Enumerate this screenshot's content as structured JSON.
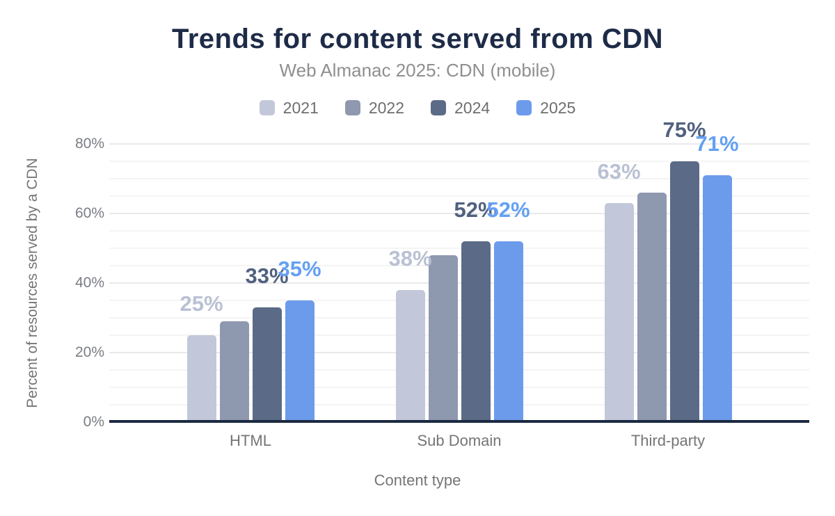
{
  "chart_data": {
    "type": "bar",
    "title": "Trends for content served from CDN",
    "subtitle": "Web Almanac 2025: CDN (mobile)",
    "xlabel": "Content type",
    "ylabel": "Percent of resources served by a CDN",
    "categories": [
      "HTML",
      "Sub Domain",
      "Third-party"
    ],
    "series": [
      {
        "name": "2021",
        "color": "#c2c8d9",
        "label_color": "#b9c1d3",
        "values": [
          25,
          38,
          63
        ],
        "data_labels": [
          "25%",
          "38%",
          "63%"
        ]
      },
      {
        "name": "2022",
        "color": "#8e98af",
        "label_color": null,
        "values": [
          29,
          48,
          66
        ],
        "data_labels": [
          null,
          null,
          null
        ]
      },
      {
        "name": "2024",
        "color": "#5b6a87",
        "label_color": "#51617f",
        "values": [
          33,
          52,
          75
        ],
        "data_labels": [
          "33%",
          "52%",
          "75%"
        ]
      },
      {
        "name": "2025",
        "color": "#6c9beb",
        "label_color": "#64a0f2",
        "values": [
          35,
          52,
          71
        ],
        "data_labels": [
          "35%",
          "52%",
          "71%"
        ]
      }
    ],
    "ylim": [
      0,
      80
    ],
    "yticks": [
      {
        "value": 0,
        "label": "0%"
      },
      {
        "value": 20,
        "label": "20%"
      },
      {
        "value": 40,
        "label": "40%"
      },
      {
        "value": 60,
        "label": "60%"
      },
      {
        "value": 80,
        "label": "80%"
      }
    ],
    "grid": {
      "horizontal": true,
      "minor_step": 5,
      "major_step": 20
    },
    "legend_position": "top"
  },
  "colors": {
    "title": "#1d2b47",
    "subtitle": "#8f8f8f",
    "legend_text": "#6e6e6e",
    "tick_text": "#7a7d85",
    "category_text": "#757575",
    "axis_title_text": "#757575",
    "axis_line": "#1b2a41",
    "grid_minor": "#f4f4f4",
    "grid_major": "#e9e9e9"
  }
}
